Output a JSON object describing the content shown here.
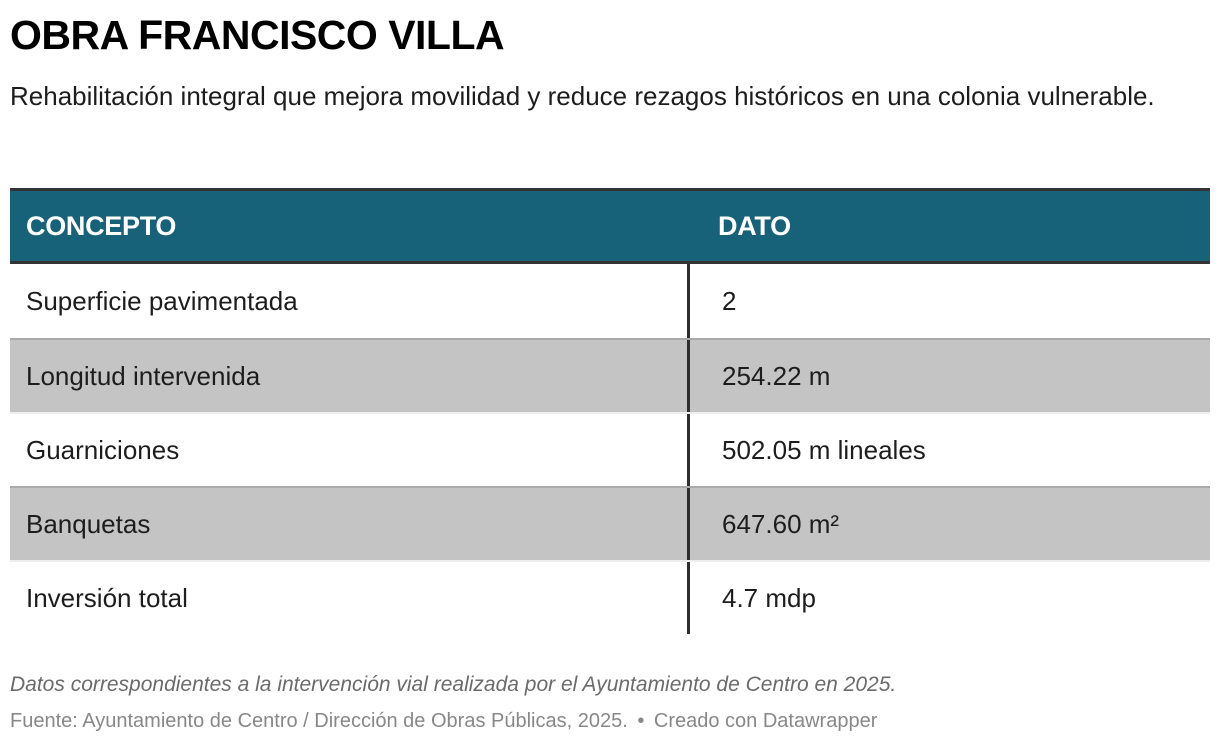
{
  "header": {
    "title": "OBRA FRANCISCO VILLA",
    "subtitle": "Rehabilitación integral que mejora movilidad y reduce rezagos históricos en una colonia vulnerable."
  },
  "table": {
    "columns": [
      "CONCEPTO",
      "DATO"
    ],
    "rows": [
      {
        "concepto": "Superficie pavimentada",
        "dato": "2"
      },
      {
        "concepto": "Longitud intervenida",
        "dato": "254.22 m"
      },
      {
        "concepto": "Guarniciones",
        "dato": "502.05 m lineales"
      },
      {
        "concepto": "Banquetas",
        "dato": "647.60 m²"
      },
      {
        "concepto": "Inversión total",
        "dato": "4.7 mdp"
      }
    ]
  },
  "footer": {
    "notes": "Datos correspondientes a la intervención vial realizada por el Ayuntamiento de Centro en 2025.",
    "source": "Fuente: Ayuntamiento de Centro / Dirección de Obras Públicas, 2025.",
    "separator": "•",
    "credit": "Creado con Datawrapper"
  },
  "colors": {
    "header_bg": "#176179",
    "header_text": "#ffffff",
    "shaded_row": "#c4c4c4",
    "border_dark": "#333333"
  },
  "chart_data": {
    "type": "table",
    "title": "OBRA FRANCISCO VILLA",
    "subtitle": "Rehabilitación integral que mejora movilidad y reduce rezagos históricos en una colonia vulnerable.",
    "columns": [
      "CONCEPTO",
      "DATO"
    ],
    "rows": [
      [
        "Superficie pavimentada",
        "2"
      ],
      [
        "Longitud intervenida",
        "254.22 m"
      ],
      [
        "Guarniciones",
        "502.05 m lineales"
      ],
      [
        "Banquetas",
        "647.60 m²"
      ],
      [
        "Inversión total",
        "4.7 mdp"
      ]
    ],
    "notes": "Datos correspondientes a la intervención vial realizada por el Ayuntamiento de Centro en 2025.",
    "source": "Ayuntamiento de Centro / Dirección de Obras Públicas, 2025."
  }
}
